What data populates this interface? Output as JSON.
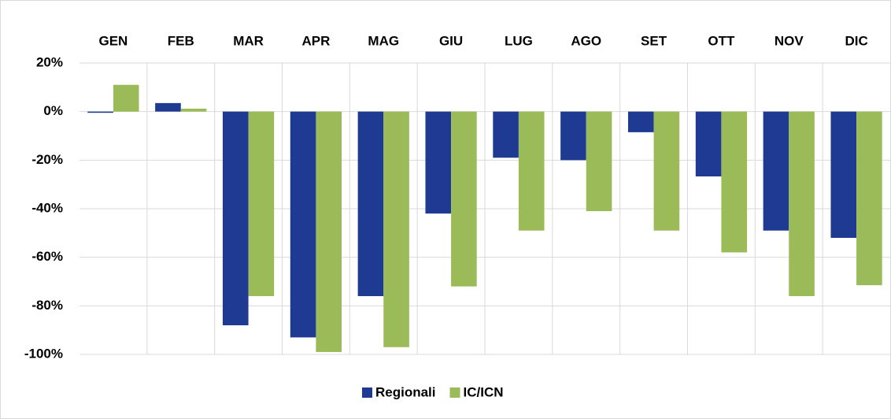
{
  "chart_data": {
    "type": "bar",
    "categories": [
      "GEN",
      "FEB",
      "MAR",
      "APR",
      "MAG",
      "GIU",
      "LUG",
      "AGO",
      "SET",
      "OTT",
      "NOV",
      "DIC"
    ],
    "series": [
      {
        "name": "Regionali",
        "color": "#1f3a93",
        "values": [
          -0.5,
          3.5,
          -88,
          -93,
          -76,
          -42,
          -19,
          -20,
          -8.5,
          -26.7,
          -49,
          -52
        ]
      },
      {
        "name": "IC/ICN",
        "color": "#9bbb59",
        "values": [
          11,
          1.2,
          -76,
          -99,
          -97,
          -72,
          -49,
          -41,
          -49,
          -58,
          -76,
          -71.5
        ]
      }
    ],
    "ylim": [
      -100,
      20
    ],
    "yticks": [
      {
        "value": -100,
        "label": "-100%"
      },
      {
        "value": -80,
        "label": "-80%"
      },
      {
        "value": -60,
        "label": "-60%"
      },
      {
        "value": -40,
        "label": "-40%"
      },
      {
        "value": -20,
        "label": "-20%"
      },
      {
        "value": 0,
        "label": "0%"
      },
      {
        "value": 20,
        "label": "20%"
      }
    ],
    "grid": true,
    "legend": "bottom"
  }
}
